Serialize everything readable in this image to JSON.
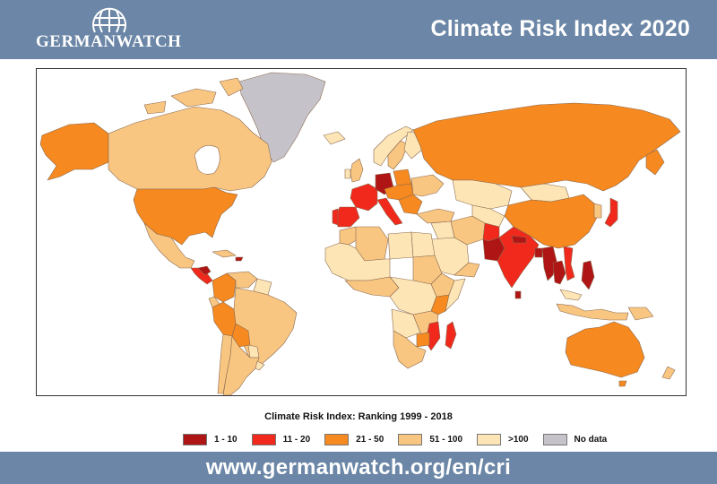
{
  "header": {
    "logo_text": "GERMANWATCH",
    "logo_icon": "globe-icon",
    "title": "Climate Risk Index 2020"
  },
  "legend": {
    "title": "Climate Risk Index: Ranking 1999 - 2018",
    "items": [
      {
        "label": "1 - 10",
        "color": "#b01515"
      },
      {
        "label": "11 - 20",
        "color": "#f0291c"
      },
      {
        "label": "21 - 50",
        "color": "#f6891f"
      },
      {
        "label": "51 - 100",
        "color": "#f9c682"
      },
      {
        "label": ">100",
        "color": "#fde5b5"
      },
      {
        "label": "No data",
        "color": "#c5c3c9"
      }
    ]
  },
  "footer": {
    "url": "www.germanwatch.org/en/cri"
  }
}
